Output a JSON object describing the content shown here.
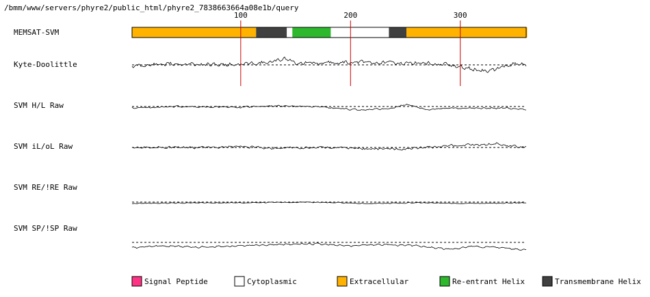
{
  "chart_data": {
    "type": "line",
    "title": "/bmm/www/servers/phyre2/public_html/phyre2_7838663664a08e1b/query",
    "sequence_length": 360,
    "ticks": [
      100,
      200,
      300
    ],
    "memsat_track": {
      "label": "MEMSAT-SVM",
      "segments": [
        {
          "start": 1,
          "end": 113,
          "type": "Extracellular"
        },
        {
          "start": 114,
          "end": 141,
          "type": "Transmembrane Helix"
        },
        {
          "start": 142,
          "end": 146,
          "type": "Cytoplasmic"
        },
        {
          "start": 147,
          "end": 181,
          "type": "Re-entrant Helix"
        },
        {
          "start": 182,
          "end": 234,
          "type": "Cytoplasmic"
        },
        {
          "start": 235,
          "end": 250,
          "type": "Transmembrane Helix"
        },
        {
          "start": 251,
          "end": 360,
          "type": "Extracellular"
        }
      ]
    },
    "series": [
      {
        "name": "Kyte-Doolittle",
        "seed": 11,
        "amp": 4,
        "noise": 2.2,
        "trend": [
          [
            0,
            2
          ],
          [
            40,
            -2
          ],
          [
            70,
            0
          ],
          [
            100,
            -1
          ],
          [
            130,
            -4
          ],
          [
            140,
            -10
          ],
          [
            150,
            -3
          ],
          [
            170,
            -2
          ],
          [
            200,
            -4
          ],
          [
            230,
            -3
          ],
          [
            260,
            -3
          ],
          [
            290,
            1
          ],
          [
            310,
            6
          ],
          [
            320,
            9
          ],
          [
            330,
            8
          ],
          [
            345,
            -1
          ],
          [
            360,
            0
          ]
        ]
      },
      {
        "name": "SVM H/L Raw",
        "seed": 23,
        "amp": 1.2,
        "noise": 0.9,
        "trend": [
          [
            0,
            2
          ],
          [
            40,
            0
          ],
          [
            100,
            1
          ],
          [
            130,
            -1
          ],
          [
            160,
            0
          ],
          [
            190,
            3
          ],
          [
            210,
            5
          ],
          [
            235,
            3
          ],
          [
            250,
            -3
          ],
          [
            260,
            0
          ],
          [
            270,
            5
          ],
          [
            290,
            2
          ],
          [
            310,
            3
          ],
          [
            340,
            2
          ],
          [
            360,
            5
          ]
        ]
      },
      {
        "name": "SVM iL/oL Raw",
        "seed": 37,
        "amp": 1.5,
        "noise": 1.4,
        "trend": [
          [
            0,
            -1
          ],
          [
            50,
            0
          ],
          [
            100,
            -1
          ],
          [
            130,
            1
          ],
          [
            180,
            0
          ],
          [
            220,
            2
          ],
          [
            250,
            2
          ],
          [
            270,
            0
          ],
          [
            300,
            -3
          ],
          [
            320,
            -4
          ],
          [
            335,
            -6
          ],
          [
            345,
            -2
          ],
          [
            360,
            -1
          ]
        ]
      },
      {
        "name": "SVM RE/!RE Raw",
        "seed": 41,
        "amp": 0.8,
        "noise": 0.5,
        "trend": [
          [
            0,
            2
          ],
          [
            60,
            1
          ],
          [
            100,
            1
          ],
          [
            160,
            0
          ],
          [
            220,
            2
          ],
          [
            260,
            1
          ],
          [
            300,
            2
          ],
          [
            360,
            1
          ]
        ]
      },
      {
        "name": "SVM SP/!SP Raw",
        "seed": 53,
        "amp": 2.0,
        "noise": 0.8,
        "trend": [
          [
            0,
            8
          ],
          [
            30,
            5
          ],
          [
            60,
            7
          ],
          [
            100,
            5
          ],
          [
            140,
            3
          ],
          [
            170,
            2
          ],
          [
            200,
            5
          ],
          [
            230,
            3
          ],
          [
            260,
            5
          ],
          [
            290,
            10
          ],
          [
            310,
            6
          ],
          [
            340,
            8
          ],
          [
            360,
            11
          ]
        ]
      }
    ],
    "legend": [
      {
        "label": "Signal Peptide",
        "color": "#ff3385"
      },
      {
        "label": "Cytoplasmic",
        "color": "#ffffff"
      },
      {
        "label": "Extracellular",
        "color": "#ffb300"
      },
      {
        "label": "Re-entrant Helix",
        "color": "#2db82d"
      },
      {
        "label": "Transmembrane Helix",
        "color": "#404040"
      }
    ],
    "colors": {
      "Signal Peptide": "#ff3385",
      "Cytoplasmic": "#ffffff",
      "Extracellular": "#ffb300",
      "Re-entrant Helix": "#2db82d",
      "Transmembrane Helix": "#404040",
      "tick_line": "#cc0000"
    }
  }
}
